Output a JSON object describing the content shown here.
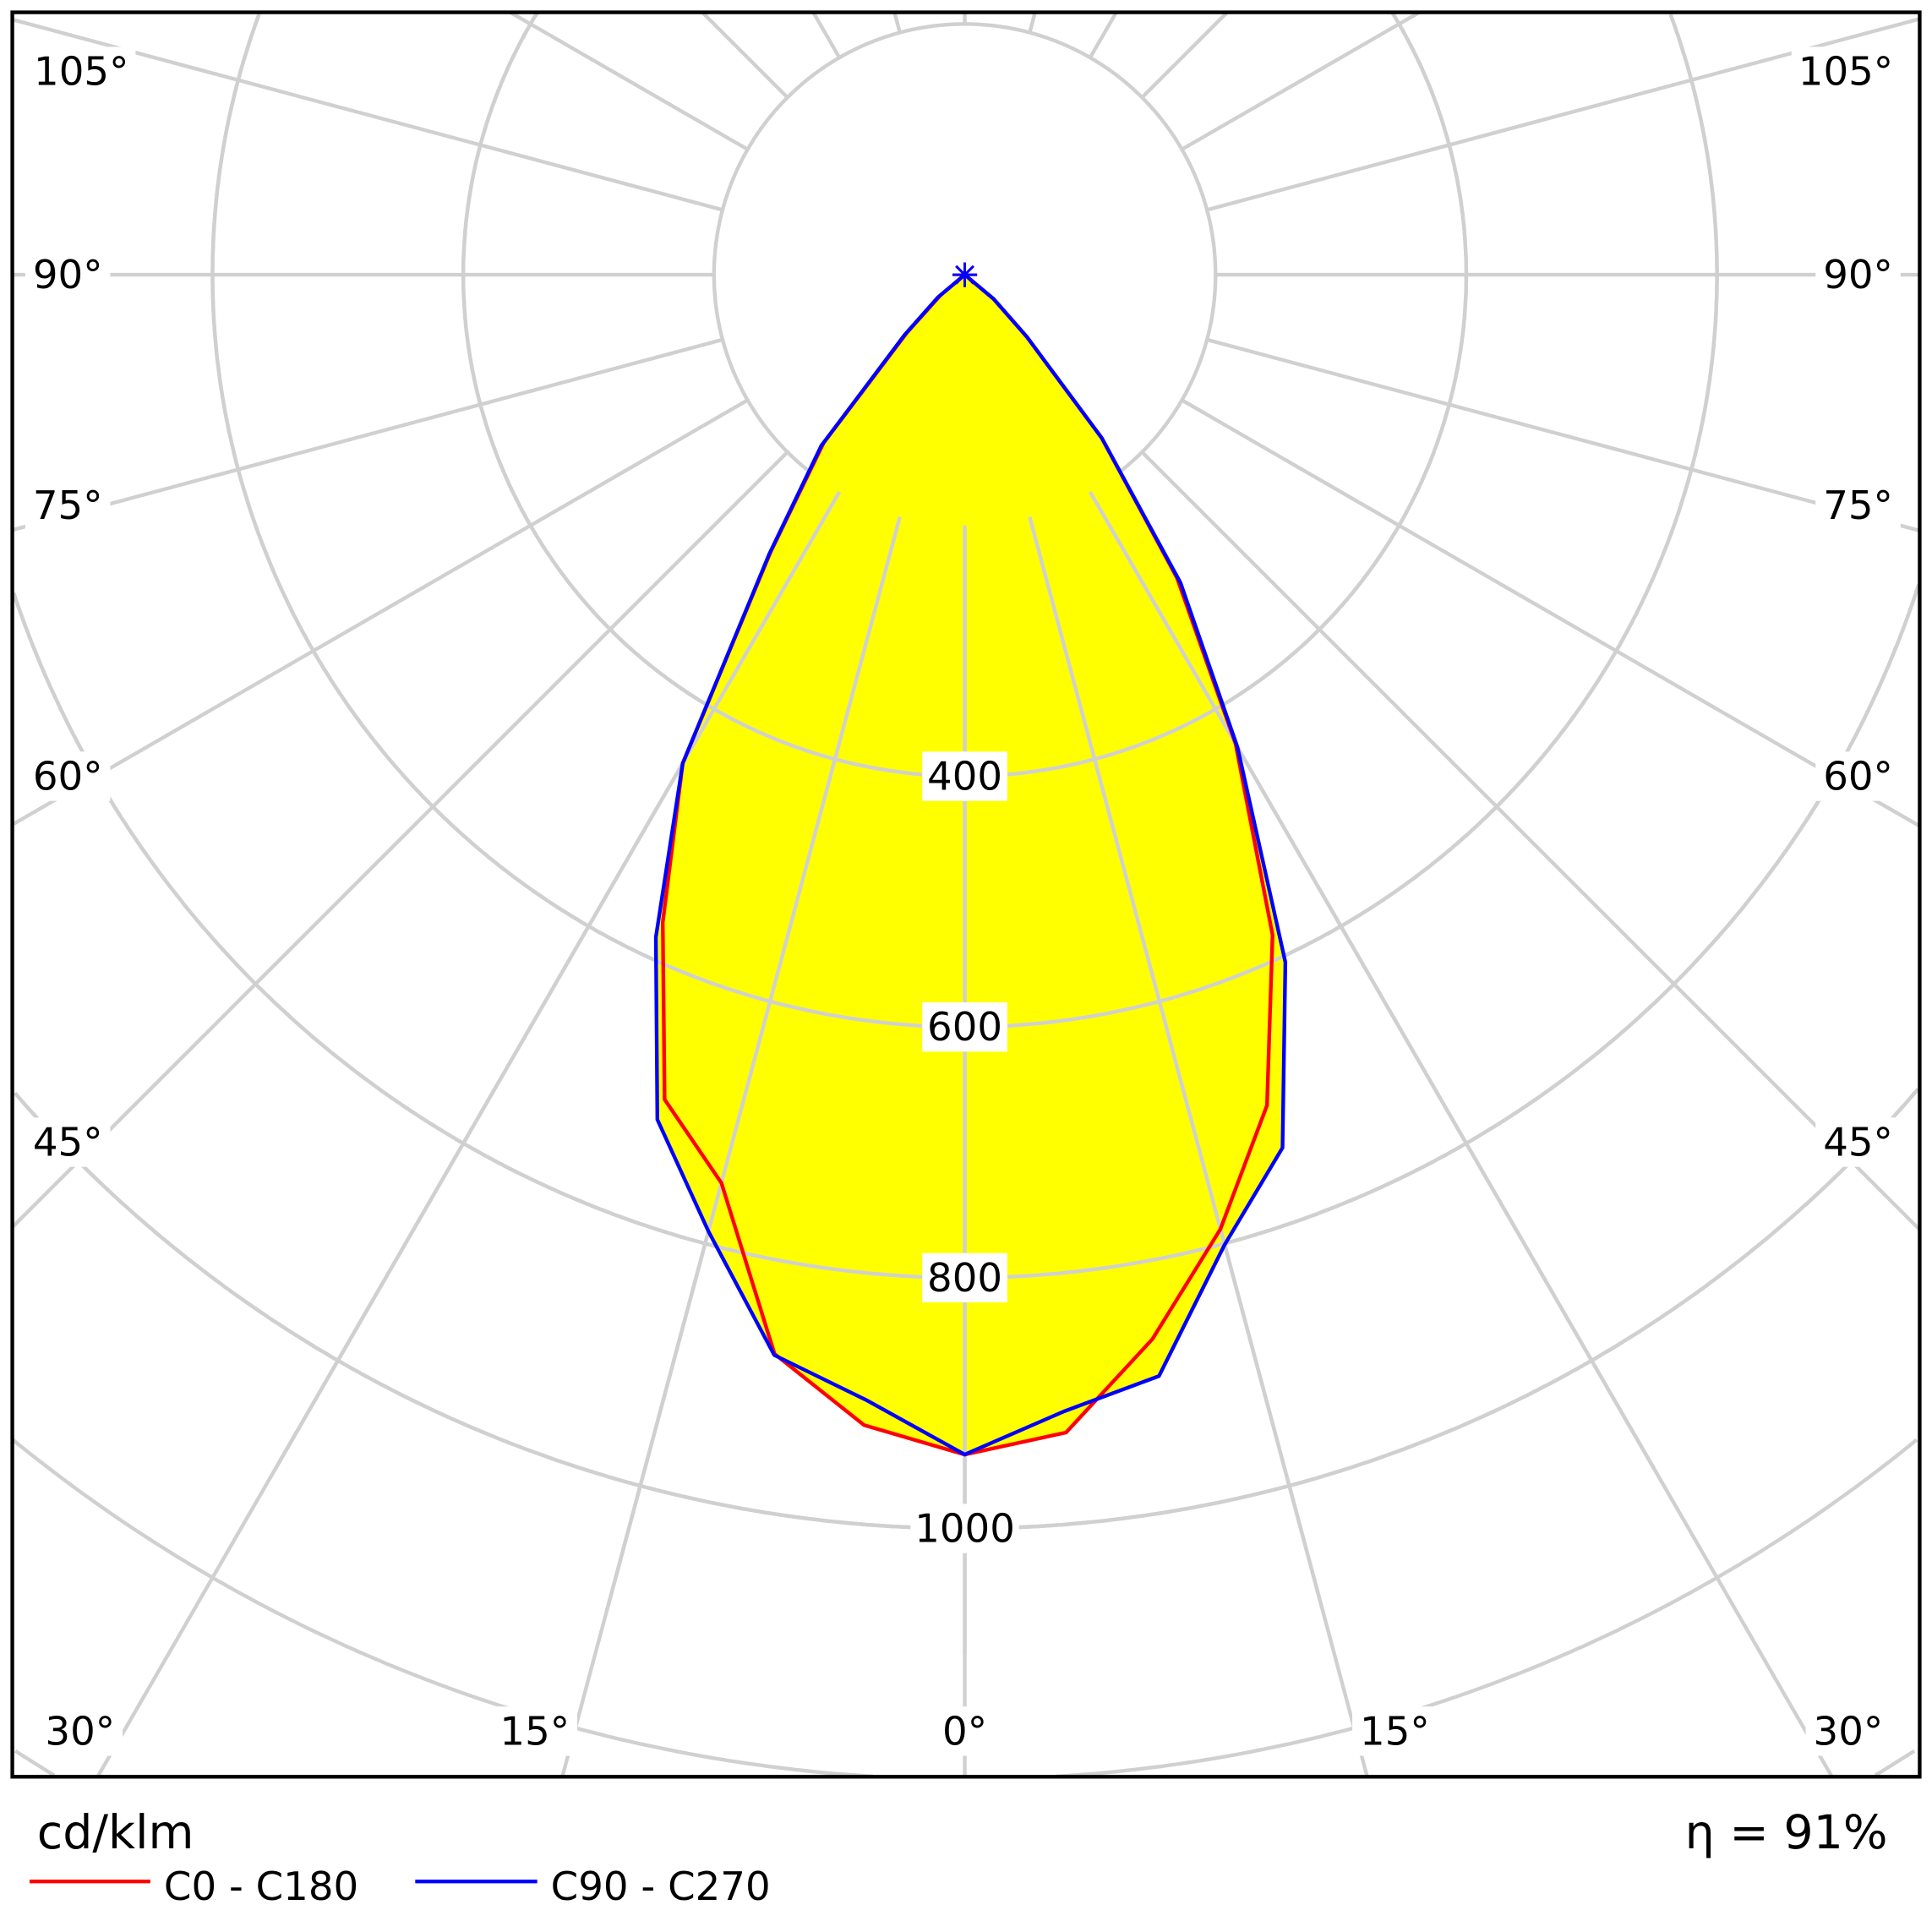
{
  "unit_label": "cd/klm",
  "efficiency_label": "η = 91%",
  "colors": {
    "fill": "#ffff00",
    "grid": "#d0d0d0",
    "c0_c180": "#ff0000",
    "c90_c270": "#0000ff"
  },
  "chart_data": {
    "type": "polar-line",
    "radial_ticks": [
      "400",
      "600",
      "800",
      "1000"
    ],
    "ring_step": 200,
    "angle_ticks": {
      "left": [
        "105°",
        "90°",
        "75°",
        "60°",
        "45°",
        "30°",
        "15°"
      ],
      "center": "0°",
      "right": [
        "15°",
        "30°",
        "45°",
        "60°",
        "75°",
        "90°",
        "105°"
      ]
    },
    "angles": [
      0,
      5,
      10,
      15,
      20,
      25,
      30,
      35,
      40,
      45,
      50,
      55
    ],
    "series": [
      {
        "name": "C0 - C180",
        "C0": [
          941,
          927,
          862,
          788,
          705,
          581,
          432,
          295,
          170,
          70,
          30,
          0
        ],
        "C180": [
          941,
          921,
          874,
          750,
          700,
          570,
          450,
          270,
          175,
          65,
          25,
          0
        ]
      },
      {
        "name": "C90 - C270",
        "C90": [
          941,
          910,
          892,
          801,
          741,
          605,
          435,
          300,
          170,
          70,
          30,
          0
        ],
        "C270": [
          941,
          901,
          875,
          790,
          717,
          583,
          450,
          272,
          178,
          68,
          28,
          0
        ]
      }
    ]
  },
  "legend": [
    {
      "label": "C0 - C180"
    },
    {
      "label": "C90 - C270"
    }
  ]
}
